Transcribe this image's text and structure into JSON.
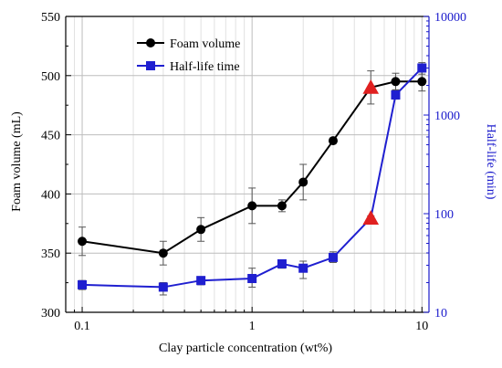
{
  "chart_data": {
    "type": "line",
    "xlabel": "Clay particle concentration (wt%)",
    "x_scale": "log",
    "xlim": [
      0.08,
      11
    ],
    "x_ticks": [
      0.1,
      1,
      10
    ],
    "x_tick_labels": [
      "0.1",
      "1",
      "10"
    ],
    "grid": true,
    "legend_position": "top-left",
    "left_axis": {
      "label": "Foam volume (mL)",
      "ylim": [
        300,
        550
      ],
      "ticks": [
        300,
        350,
        400,
        450,
        500,
        550
      ],
      "tick_labels": [
        "300",
        "350",
        "400",
        "450",
        "500",
        "550"
      ],
      "color": "#000000"
    },
    "right_axis": {
      "label": "Half-life (min)",
      "scale": "log",
      "ylim": [
        10,
        10000
      ],
      "ticks": [
        10,
        100,
        1000,
        10000
      ],
      "tick_labels": [
        "10",
        "100",
        "1000",
        "10000"
      ],
      "color": "#1a1acc"
    },
    "series": [
      {
        "name": "Foam volume",
        "axis": "left",
        "color": "#000000",
        "marker": "circle",
        "x": [
          0.1,
          0.3,
          0.5,
          1,
          1.5,
          2,
          3,
          5,
          7,
          10
        ],
        "y": [
          360,
          350,
          370,
          390,
          390,
          410,
          445,
          490,
          495,
          495
        ],
        "error": [
          12,
          10,
          10,
          15,
          5,
          15,
          0,
          14,
          7,
          8
        ]
      },
      {
        "name": "Half-life time",
        "axis": "right",
        "color": "#1f1fd0",
        "marker": "square",
        "x": [
          0.1,
          0.3,
          0.5,
          1,
          1.5,
          2,
          3,
          5,
          7,
          10
        ],
        "y": [
          19,
          18,
          21,
          22,
          31,
          28,
          36,
          90,
          1600,
          3000
        ],
        "error_low": [
          17,
          15,
          19,
          18,
          28,
          22,
          32,
          85,
          1450,
          2600
        ],
        "error_high": [
          21,
          20,
          23,
          28,
          34,
          33,
          41,
          95,
          1800,
          3400
        ]
      }
    ],
    "highlight_markers": [
      {
        "series": "Foam volume",
        "x": 5,
        "y": 490,
        "marker": "triangle",
        "color": "#e02020"
      },
      {
        "series": "Half-life time",
        "x": 5,
        "y": 90,
        "marker": "triangle",
        "color": "#e02020"
      }
    ]
  }
}
